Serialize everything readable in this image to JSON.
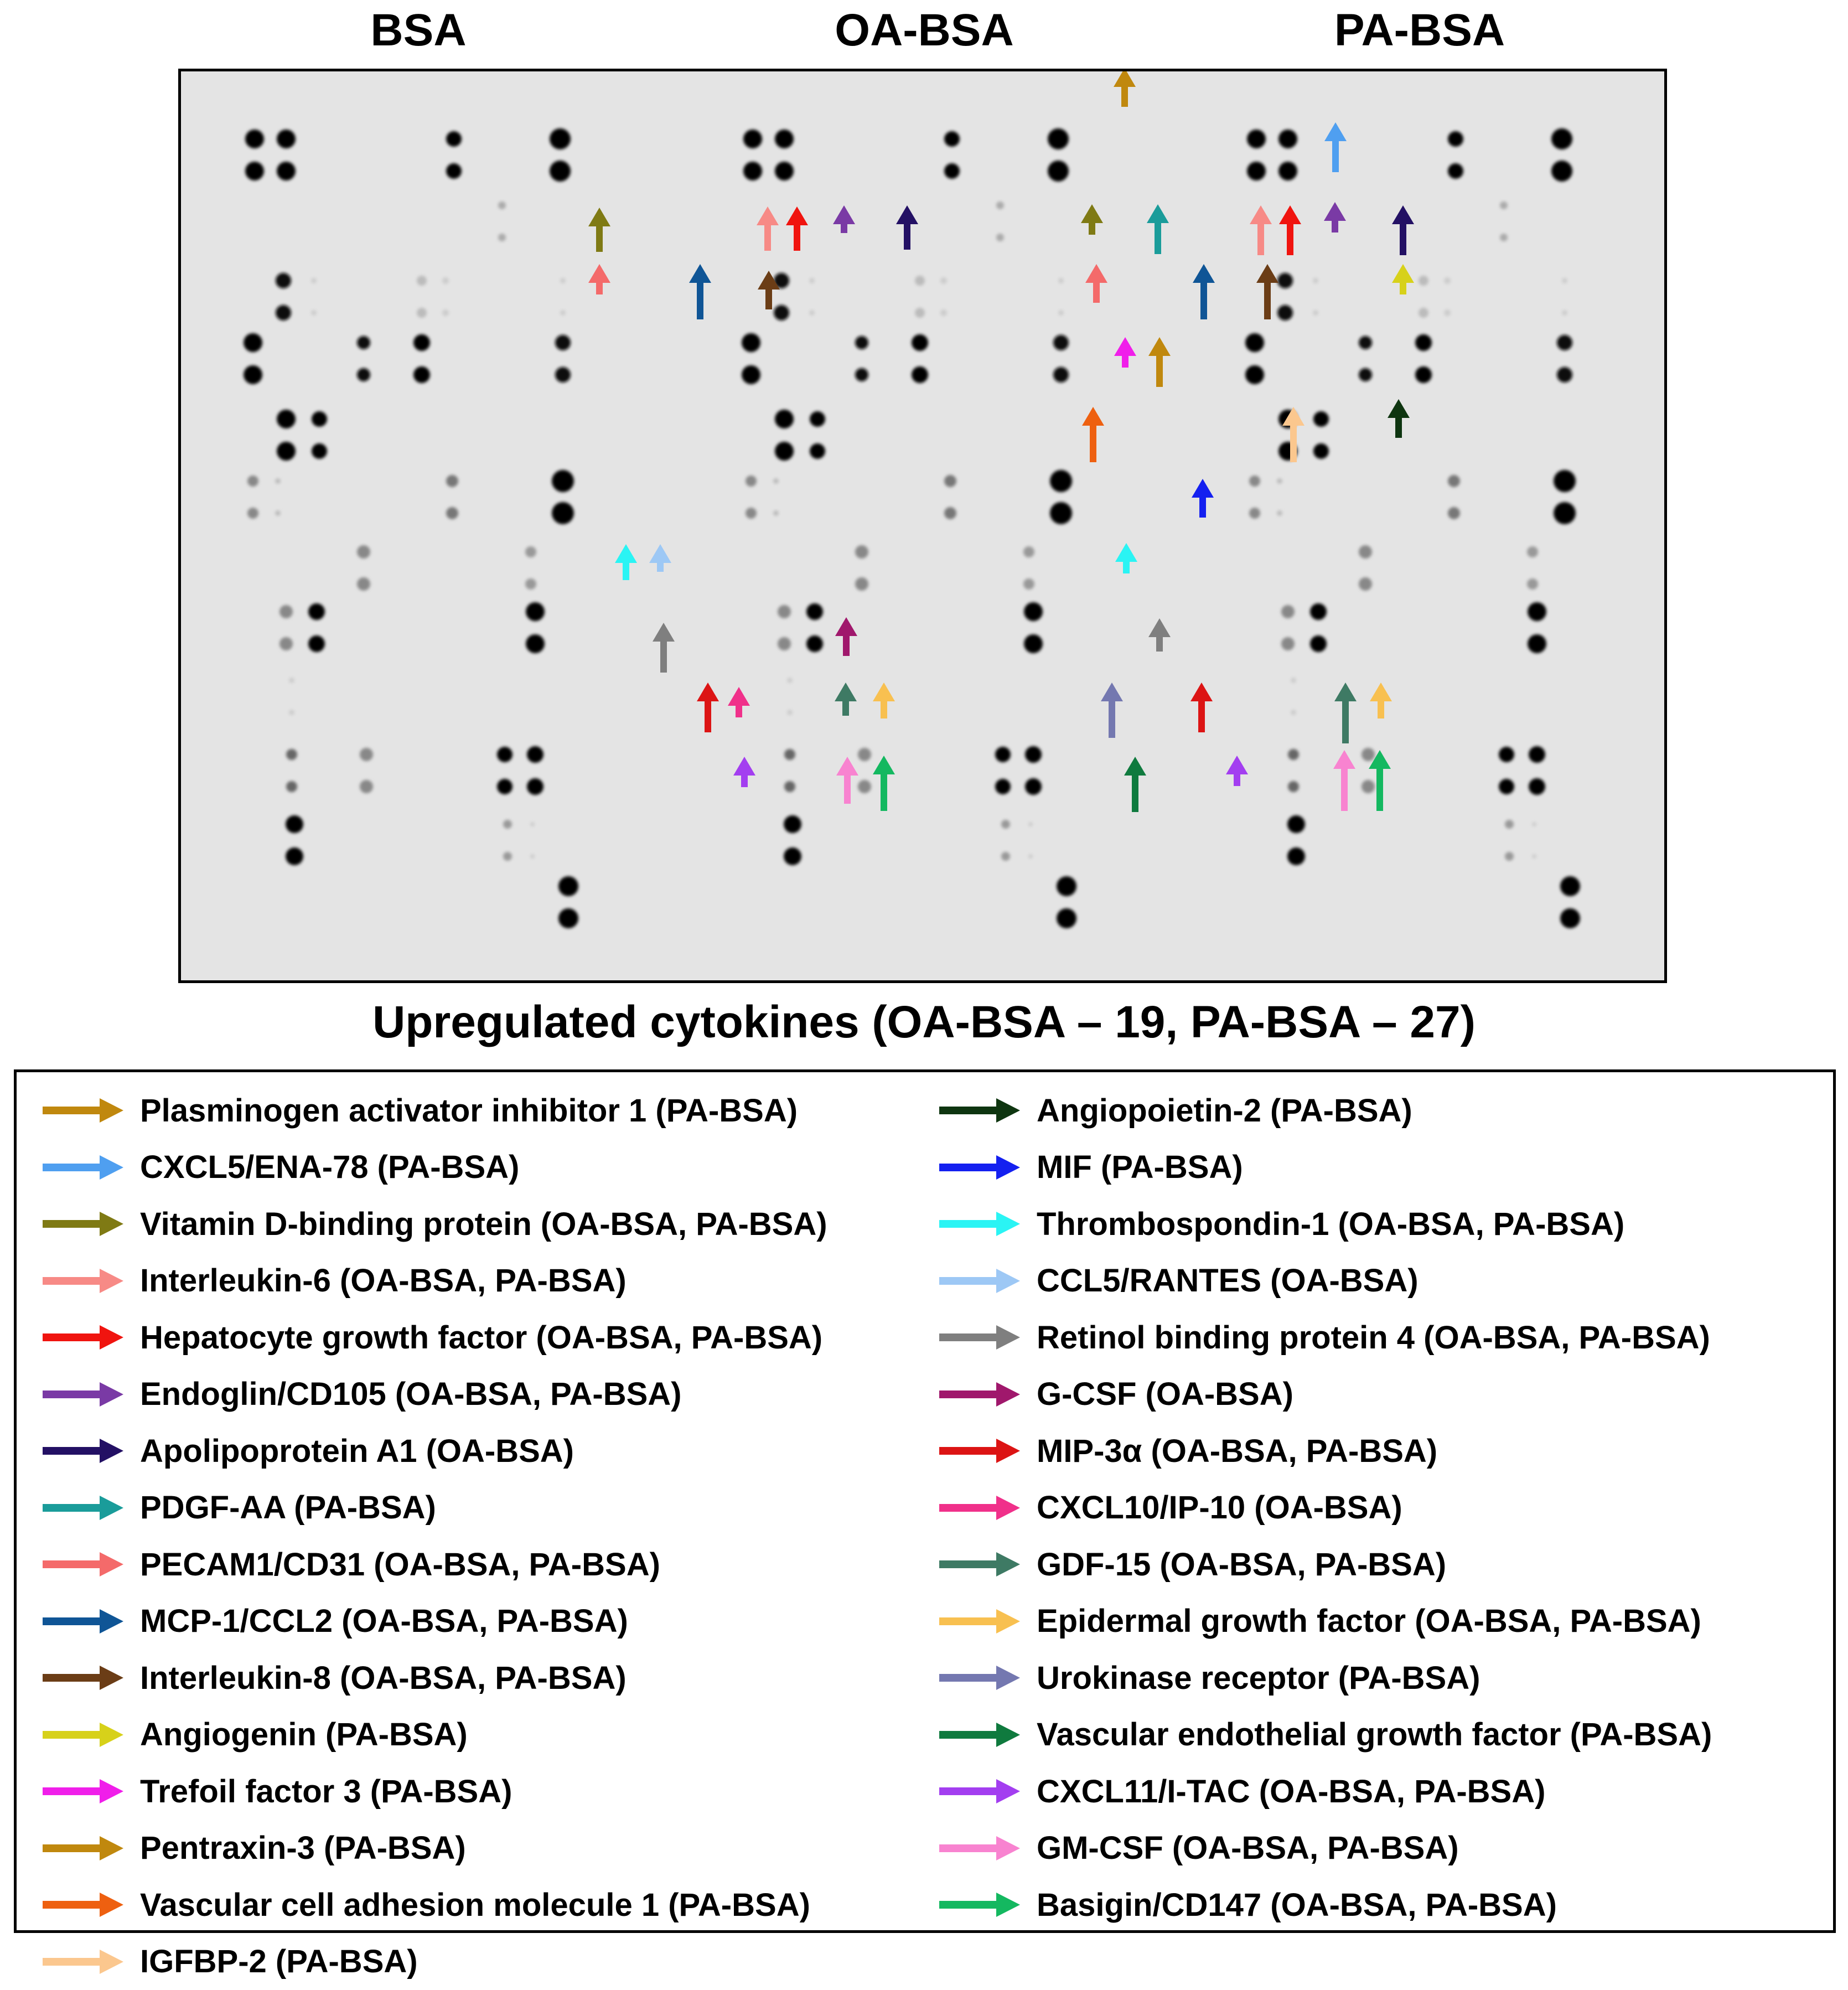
{
  "column_headers": [
    "BSA",
    "OA-BSA",
    "PA-BSA"
  ],
  "subtitle": "Upregulated cytokines (OA-BSA – 19, PA-BSA – 27)",
  "legend": [
    {
      "label": "Plasminogen activator inhibitor 1 (PA-BSA)",
      "color": "#c0880e"
    },
    {
      "label": "CXCL5/ENA-78 (PA-BSA)",
      "color": "#4f9ff0"
    },
    {
      "label": "Vitamin D-binding protein (OA-BSA, PA-BSA)",
      "color": "#7f7a14"
    },
    {
      "label": "Interleukin-6 (OA-BSA, PA-BSA)",
      "color": "#f78a86"
    },
    {
      "label": "Hepatocyte growth factor (OA-BSA, PA-BSA)",
      "color": "#f0140f"
    },
    {
      "label": "Endoglin/CD105 (OA-BSA, PA-BSA)",
      "color": "#7a3aa5"
    },
    {
      "label": "Apolipoprotein A1 (OA-BSA)",
      "color": "#231064"
    },
    {
      "label": "PDGF-AA (PA-BSA)",
      "color": "#1a9c9a"
    },
    {
      "label": "PECAM1/CD31 (OA-BSA, PA-BSA)",
      "color": "#f46a6a"
    },
    {
      "label": "MCP-1/CCL2 (OA-BSA, PA-BSA)",
      "color": "#0f5596"
    },
    {
      "label": "Interleukin-8 (OA-BSA, PA-BSA)",
      "color": "#6b3d16"
    },
    {
      "label": "Angiogenin (PA-BSA)",
      "color": "#d7d11a"
    },
    {
      "label": "Trefoil factor 3 (PA-BSA)",
      "color": "#f01eea"
    },
    {
      "label": "Pentraxin-3 (PA-BSA)",
      "color": "#c0880e"
    },
    {
      "label": "Vascular cell adhesion molecule 1 (PA-BSA)",
      "color": "#ee6010"
    },
    {
      "label": "IGFBP-2 (PA-BSA)",
      "color": "#fbc78e"
    },
    {
      "label": "Angiopoietin-2 (PA-BSA)",
      "color": "#0e3510"
    },
    {
      "label": "MIF (PA-BSA)",
      "color": "#1420f0"
    },
    {
      "label": "Thrombospondin-1 (OA-BSA, PA-BSA)",
      "color": "#2af4f4"
    },
    {
      "label": "CCL5/RANTES (OA-BSA)",
      "color": "#9dc8f5"
    },
    {
      "label": "Retinol binding protein 4 (OA-BSA, PA-BSA)",
      "color": "#7f7f7f"
    },
    {
      "label": "G-CSF (OA-BSA)",
      "color": "#a0186c"
    },
    {
      "label": "MIP-3α (OA-BSA, PA-BSA)",
      "color": "#dc1414"
    },
    {
      "label": "CXCL10/IP-10 (OA-BSA)",
      "color": "#f0308a"
    },
    {
      "label": "GDF-15 (OA-BSA, PA-BSA)",
      "color": "#3e7a64"
    },
    {
      "label": "Epidermal growth factor (OA-BSA, PA-BSA)",
      "color": "#f8c050"
    },
    {
      "label": "Urokinase receptor (PA-BSA)",
      "color": "#7478b0"
    },
    {
      "label": "Vascular endothelial growth factor (PA-BSA)",
      "color": "#0f7a3e"
    },
    {
      "label": "CXCL11/I-TAC (OA-BSA, PA-BSA)",
      "color": "#a33ef0"
    },
    {
      "label": "GM-CSF (OA-BSA, PA-BSA)",
      "color": "#f883d0"
    },
    {
      "label": "Basigin/CD147 (OA-BSA, PA-BSA)",
      "color": "#14b860"
    }
  ]
}
